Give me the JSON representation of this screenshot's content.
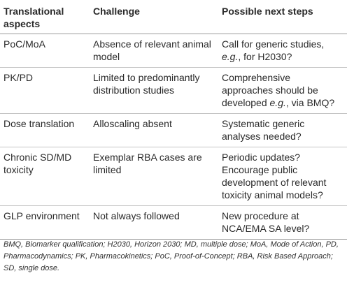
{
  "table": {
    "headers": [
      "Translational aspects",
      "Challenge",
      "Possible next steps"
    ],
    "rows": [
      {
        "aspect": "PoC/MoA",
        "challenge": "Absence of relevant animal model",
        "steps": {
          "pre": "Call for generic studies, ",
          "ital": "e.g.",
          "post": ", for H2030?"
        }
      },
      {
        "aspect": "PK/PD",
        "challenge": "Limited to predominantly distribution studies",
        "steps": {
          "pre": "Comprehensive approaches should be developed ",
          "ital": "e.g.",
          "post": ", via BMQ?"
        }
      },
      {
        "aspect": "Dose translation",
        "challenge": "Alloscaling absent",
        "steps": {
          "pre": "Systematic generic analyses needed?",
          "ital": "",
          "post": ""
        }
      },
      {
        "aspect": "Chronic SD/MD toxicity",
        "challenge": "Exemplar RBA cases are limited",
        "steps": {
          "pre": "Periodic updates? Encourage public development of relevant toxicity animal models?",
          "ital": "",
          "post": ""
        }
      },
      {
        "aspect": "GLP environment",
        "challenge": "Not always followed",
        "steps": {
          "pre": "New procedure at NCA/EMA SA level?",
          "ital": "",
          "post": ""
        }
      }
    ]
  },
  "footnote": "BMQ, Biomarker qualification; H2030, Horizon 2030; MD, multiple dose; MoA, Mode of Action, PD, Pharmacodynamics; PK, Pharmacokinetics; PoC, Proof-of-Concept; RBA, Risk Based Approach; SD, single dose."
}
